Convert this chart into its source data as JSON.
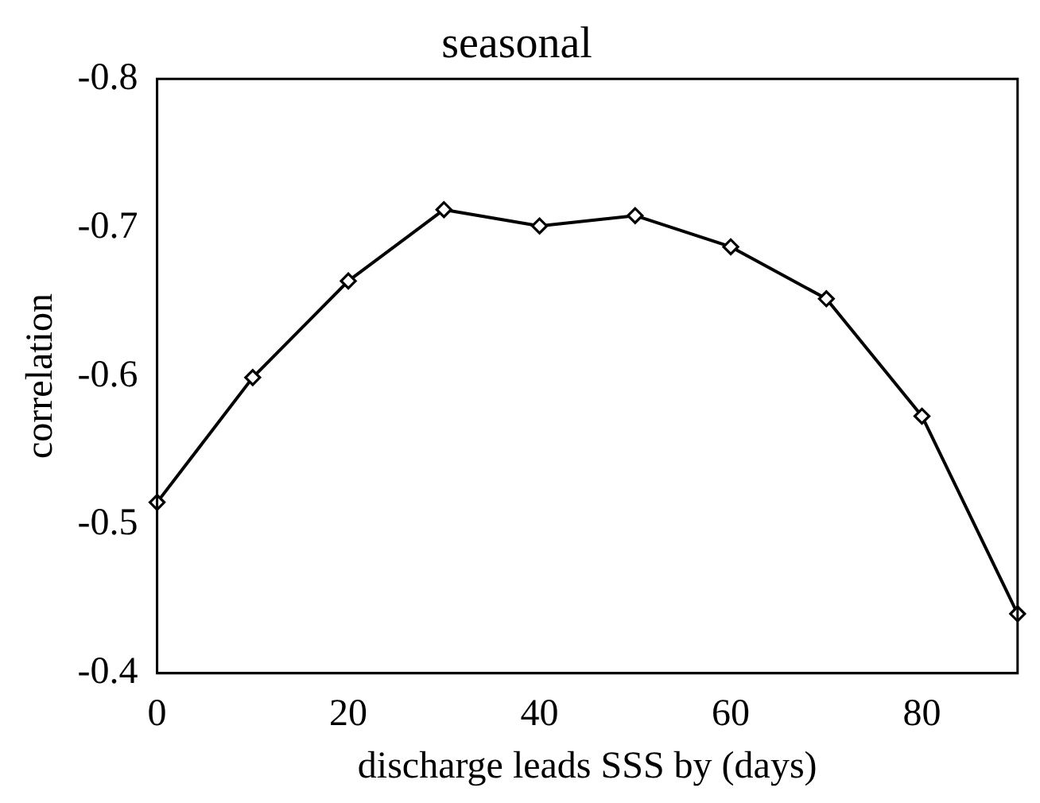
{
  "chart_data": {
    "type": "line",
    "title": "seasonal",
    "xlabel": "discharge leads SSS by (days)",
    "ylabel": "correlation",
    "x": [
      0,
      10,
      20,
      30,
      40,
      50,
      60,
      70,
      80,
      90
    ],
    "series": [
      {
        "color": "#000000",
        "values": [
          -0.515,
          -0.599,
          -0.664,
          -0.712,
          -0.701,
          -0.708,
          -0.687,
          -0.652,
          -0.573,
          -0.44
        ]
      }
    ],
    "xlim": [
      0,
      90
    ],
    "xticks": [
      0,
      20,
      40,
      60,
      80
    ],
    "ylim": [
      -0.4,
      -0.8
    ],
    "yticks": [
      -0.4,
      -0.5,
      -0.6,
      -0.7,
      -0.8
    ],
    "grid": false,
    "legend": false,
    "marker": "diamond",
    "line_style": "solid"
  }
}
